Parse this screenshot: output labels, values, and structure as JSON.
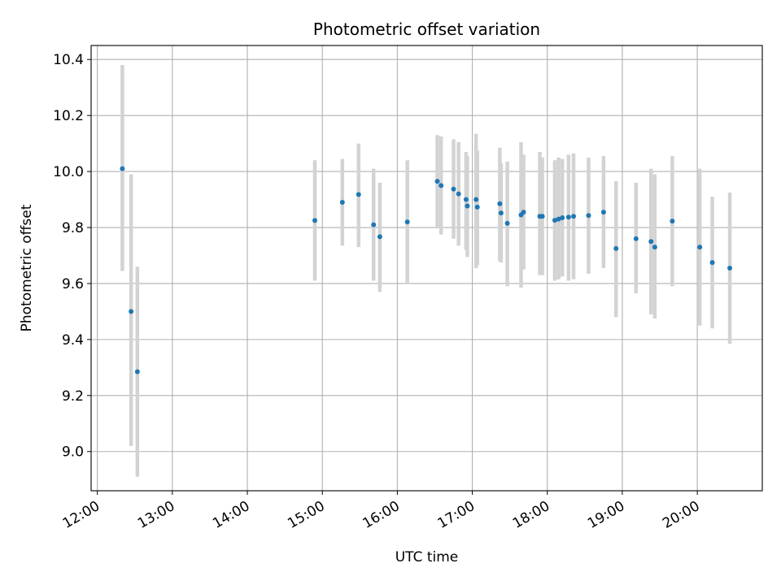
{
  "chart_data": {
    "type": "scatter",
    "title": "Photometric offset variation",
    "xlabel": "UTC time",
    "ylabel": "Photometric offset",
    "x_axis": "time",
    "xlim": [
      "11:55",
      "20:52"
    ],
    "ylim": [
      8.86,
      10.45
    ],
    "xticks": [
      "12:00",
      "13:00",
      "14:00",
      "15:00",
      "16:00",
      "17:00",
      "18:00",
      "19:00",
      "20:00"
    ],
    "yticks": [
      "9.0",
      "9.2",
      "9.4",
      "9.6",
      "9.8",
      "10.0",
      "10.2",
      "10.4"
    ],
    "grid": true,
    "marker_color": "#1f77b4",
    "errorbar_color": "#d3d3d3",
    "points": [
      {
        "x": "12:20",
        "y": 10.01,
        "lo": 9.645,
        "hi": 10.38
      },
      {
        "x": "12:27",
        "y": 9.5,
        "lo": 9.02,
        "hi": 9.99
      },
      {
        "x": "12:32",
        "y": 9.285,
        "lo": 8.91,
        "hi": 9.66
      },
      {
        "x": "14:54",
        "y": 9.825,
        "lo": 9.61,
        "hi": 10.04
      },
      {
        "x": "15:16",
        "y": 9.89,
        "lo": 9.735,
        "hi": 10.045
      },
      {
        "x": "15:29",
        "y": 9.918,
        "lo": 9.73,
        "hi": 10.1
      },
      {
        "x": "15:41",
        "y": 9.81,
        "lo": 9.61,
        "hi": 10.01
      },
      {
        "x": "15:46",
        "y": 9.767,
        "lo": 9.57,
        "hi": 9.96
      },
      {
        "x": "16:08",
        "y": 9.82,
        "lo": 9.6,
        "hi": 10.04
      },
      {
        "x": "16:32",
        "y": 9.965,
        "lo": 9.8,
        "hi": 10.13
      },
      {
        "x": "16:35",
        "y": 9.95,
        "lo": 9.775,
        "hi": 10.125
      },
      {
        "x": "16:45",
        "y": 9.937,
        "lo": 9.76,
        "hi": 10.115
      },
      {
        "x": "16:49",
        "y": 9.92,
        "lo": 9.735,
        "hi": 10.105
      },
      {
        "x": "16:55",
        "y": 9.9,
        "lo": 9.72,
        "hi": 10.07
      },
      {
        "x": "16:56",
        "y": 9.877,
        "lo": 9.695,
        "hi": 10.055
      },
      {
        "x": "17:03",
        "y": 9.9,
        "lo": 9.655,
        "hi": 10.135
      },
      {
        "x": "17:04",
        "y": 9.873,
        "lo": 9.665,
        "hi": 10.075
      },
      {
        "x": "17:22",
        "y": 9.885,
        "lo": 9.68,
        "hi": 10.085
      },
      {
        "x": "17:23",
        "y": 9.852,
        "lo": 9.675,
        "hi": 10.03
      },
      {
        "x": "17:28",
        "y": 9.815,
        "lo": 9.59,
        "hi": 10.035
      },
      {
        "x": "17:39",
        "y": 9.845,
        "lo": 9.585,
        "hi": 10.105
      },
      {
        "x": "17:41",
        "y": 9.855,
        "lo": 9.65,
        "hi": 10.06
      },
      {
        "x": "17:54",
        "y": 9.84,
        "lo": 9.63,
        "hi": 10.07
      },
      {
        "x": "17:56",
        "y": 9.84,
        "lo": 9.63,
        "hi": 10.05
      },
      {
        "x": "18:06",
        "y": 9.826,
        "lo": 9.61,
        "hi": 10.04
      },
      {
        "x": "18:09",
        "y": 9.83,
        "lo": 9.615,
        "hi": 10.05
      },
      {
        "x": "18:12",
        "y": 9.835,
        "lo": 9.625,
        "hi": 10.045
      },
      {
        "x": "18:17",
        "y": 9.837,
        "lo": 9.61,
        "hi": 10.06
      },
      {
        "x": "18:21",
        "y": 9.84,
        "lo": 9.615,
        "hi": 10.065
      },
      {
        "x": "18:33",
        "y": 9.843,
        "lo": 9.635,
        "hi": 10.05
      },
      {
        "x": "18:45",
        "y": 9.855,
        "lo": 9.655,
        "hi": 10.055
      },
      {
        "x": "18:55",
        "y": 9.725,
        "lo": 9.48,
        "hi": 9.965
      },
      {
        "x": "19:11",
        "y": 9.76,
        "lo": 9.565,
        "hi": 9.96
      },
      {
        "x": "19:23",
        "y": 9.75,
        "lo": 9.49,
        "hi": 10.01
      },
      {
        "x": "19:26",
        "y": 9.73,
        "lo": 9.475,
        "hi": 9.99
      },
      {
        "x": "19:40",
        "y": 9.823,
        "lo": 9.59,
        "hi": 10.055
      },
      {
        "x": "20:02",
        "y": 9.73,
        "lo": 9.45,
        "hi": 10.01
      },
      {
        "x": "20:12",
        "y": 9.675,
        "lo": 9.44,
        "hi": 9.91
      },
      {
        "x": "20:26",
        "y": 9.655,
        "lo": 9.385,
        "hi": 9.925
      }
    ]
  }
}
